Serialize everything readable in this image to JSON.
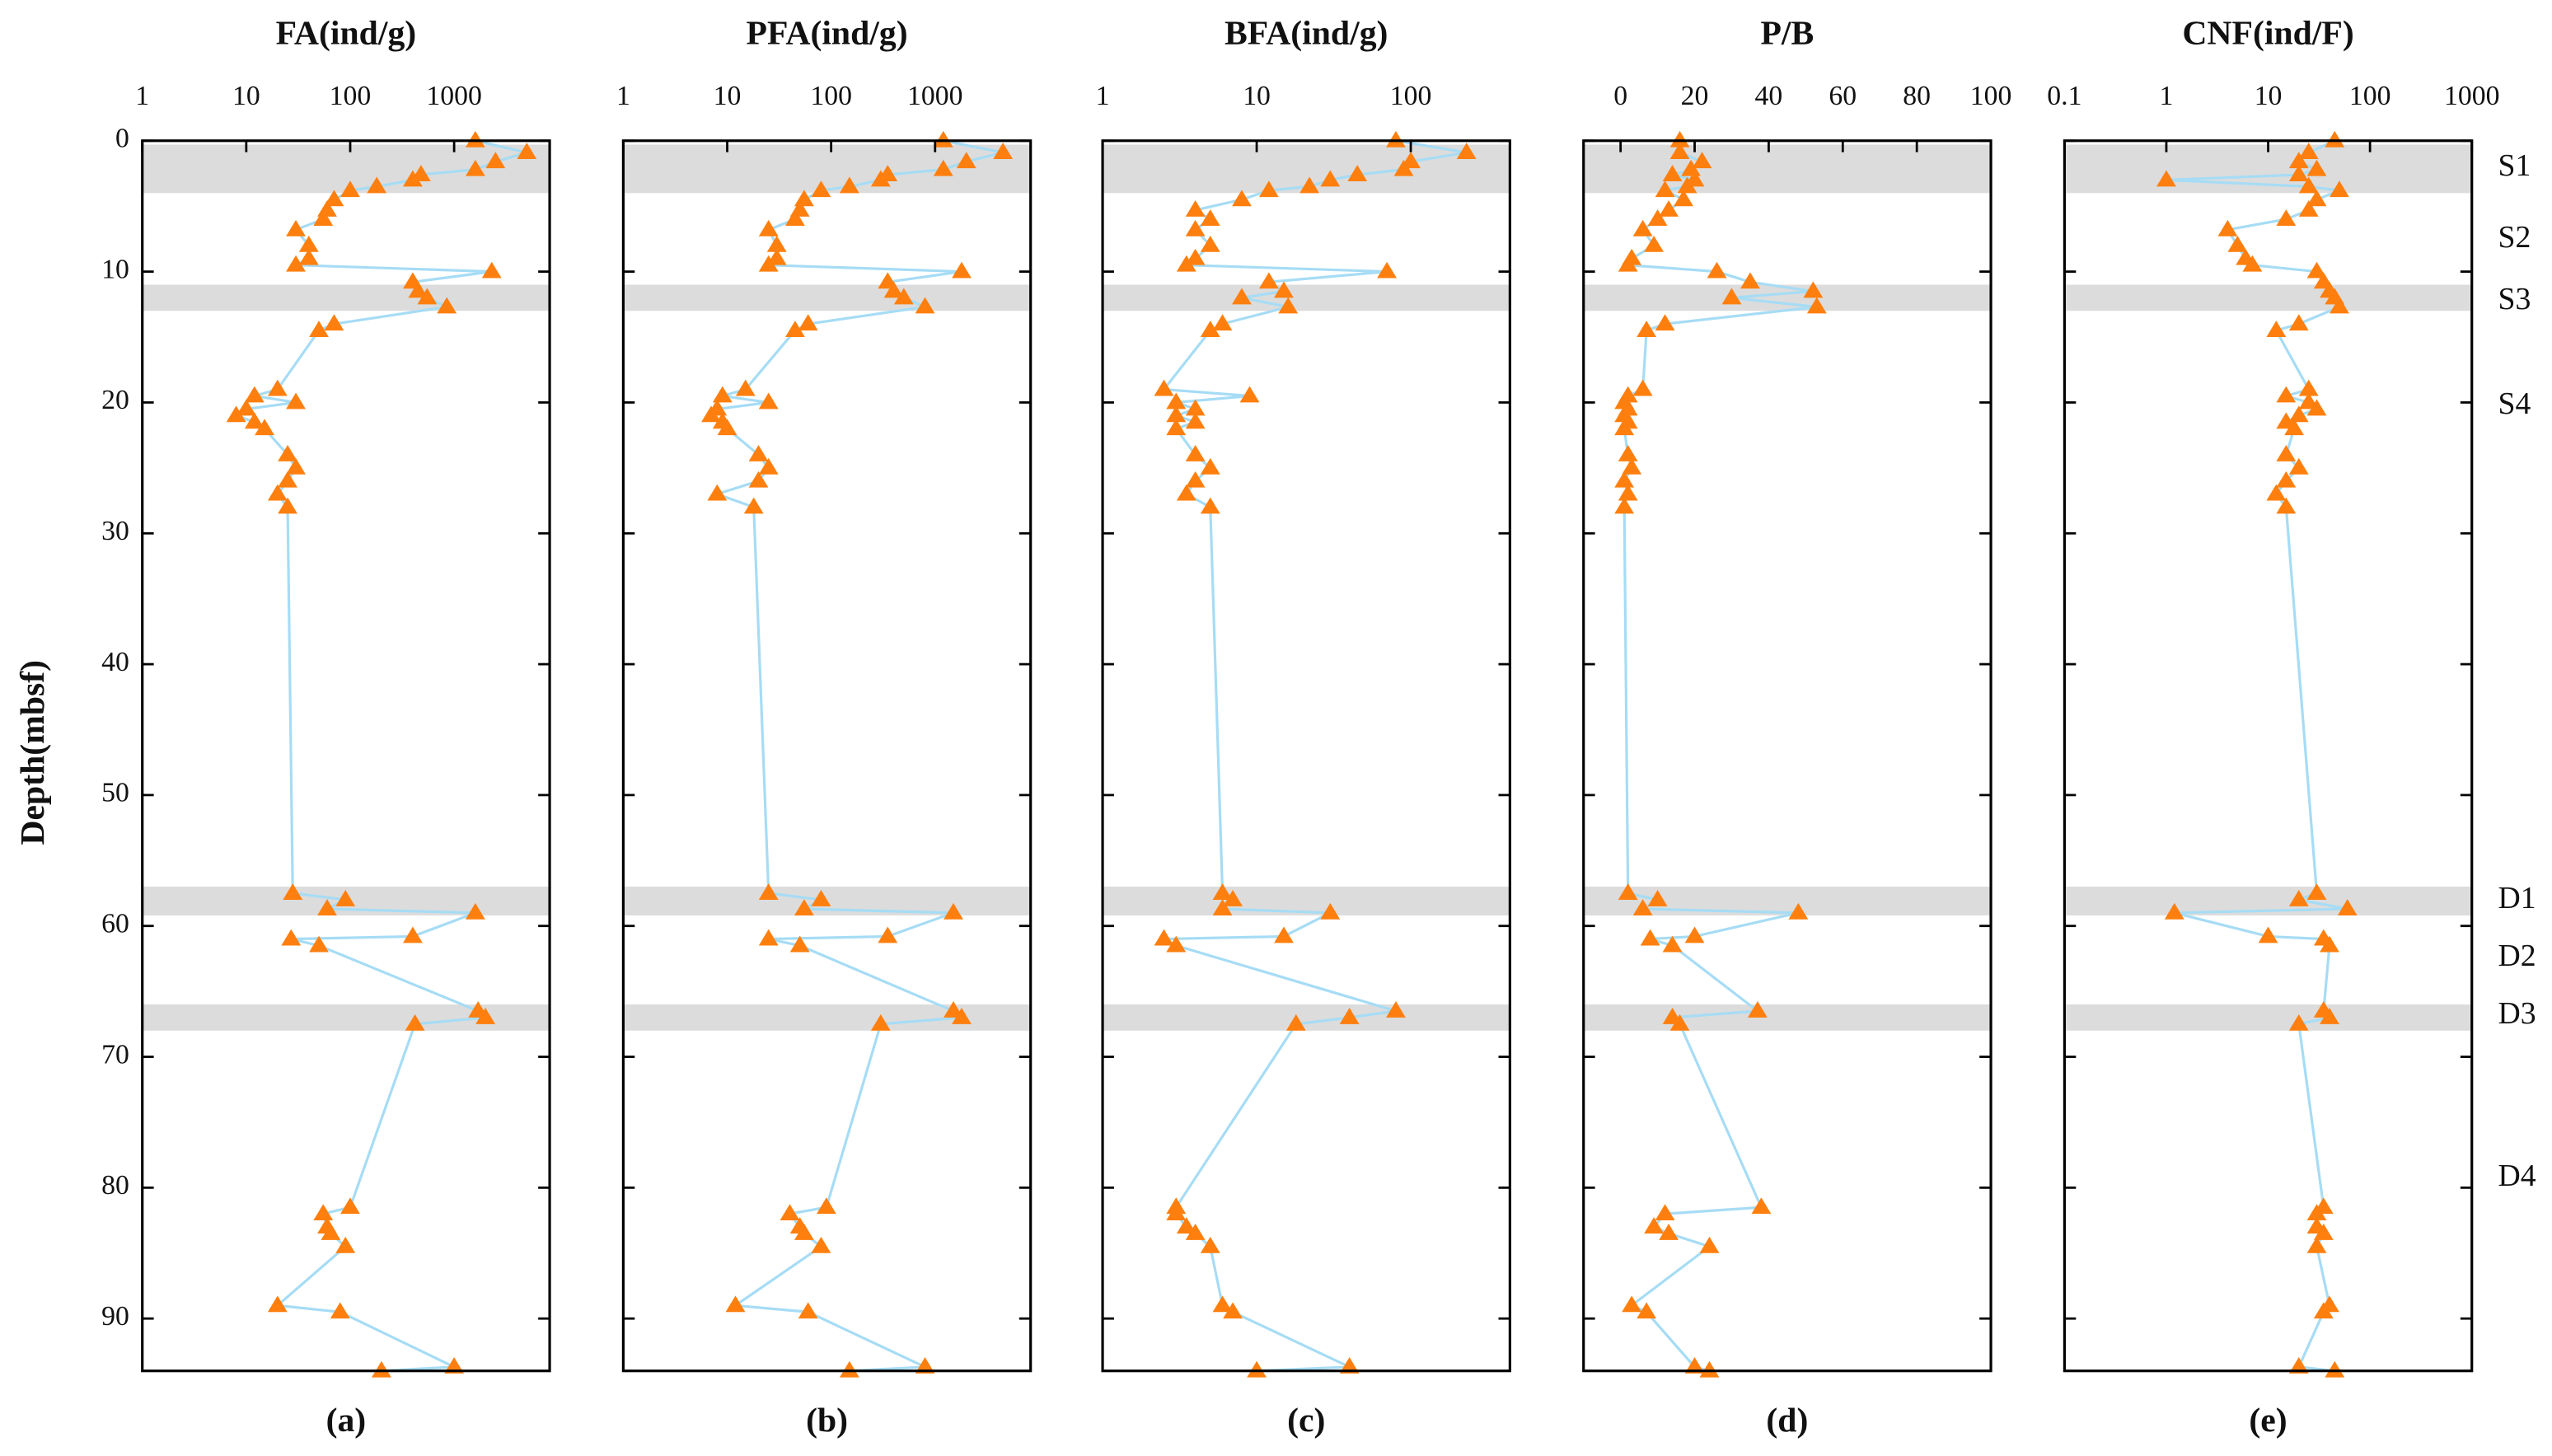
{
  "chart_data": [
    {
      "type": "line",
      "title": "FA(ind/g)",
      "caption": "(a)",
      "xscale": "log",
      "xlim": [
        1,
        8300
      ],
      "xticks": [
        1,
        10,
        100,
        1000
      ],
      "depth": [
        0,
        0.9,
        1.6,
        2.2,
        2.6,
        3.0,
        3.5,
        3.8,
        4.5,
        5.3,
        6.0,
        6.8,
        8.0,
        9.0,
        9.5,
        10.0,
        10.8,
        11.5,
        12.0,
        12.7,
        14.0,
        14.5,
        19.0,
        19.5,
        20.0,
        20.5,
        21.0,
        21.5,
        22.0,
        24.0,
        25.0,
        26.0,
        27.0,
        28.0,
        57.5,
        58.0,
        58.7,
        59.0,
        60.8,
        61.0,
        61.5,
        66.5,
        67.0,
        67.5,
        81.5,
        82.0,
        83.0,
        83.5,
        84.5,
        89.0,
        89.5,
        93.7,
        94.0
      ],
      "values": [
        1600,
        5000,
        2500,
        1600,
        480,
        400,
        180,
        100,
        70,
        60,
        55,
        30,
        40,
        40,
        30,
        2300,
        400,
        450,
        550,
        850,
        70,
        50,
        20,
        12,
        30,
        10,
        8,
        12,
        15,
        25,
        30,
        25,
        20,
        25,
        28,
        90,
        60,
        1600,
        400,
        27,
        50,
        1700,
        2000,
        420,
        100,
        55,
        60,
        65,
        90,
        20,
        80,
        1000,
        200
      ]
    },
    {
      "type": "line",
      "title": "PFA(ind/g)",
      "caption": "(b)",
      "xscale": "log",
      "xlim": [
        1,
        8300
      ],
      "xticks": [
        1,
        10,
        100,
        1000
      ],
      "depth": [
        0,
        0.9,
        1.6,
        2.2,
        2.6,
        3.0,
        3.5,
        3.8,
        4.5,
        5.3,
        6.0,
        6.8,
        8.0,
        9.0,
        9.5,
        10.0,
        10.8,
        11.5,
        12.0,
        12.7,
        14.0,
        14.5,
        19.0,
        19.5,
        20.0,
        20.5,
        21.0,
        21.5,
        22.0,
        24.0,
        25.0,
        26.0,
        27.0,
        28.0,
        57.5,
        58.0,
        58.7,
        59.0,
        60.8,
        61.0,
        61.5,
        66.5,
        67.0,
        67.5,
        81.5,
        82.0,
        83.0,
        83.5,
        84.5,
        89.0,
        89.5,
        93.7,
        94.0
      ],
      "values": [
        1200,
        4500,
        2000,
        1200,
        350,
        300,
        150,
        80,
        55,
        50,
        45,
        25,
        30,
        30,
        25,
        1800,
        350,
        400,
        500,
        800,
        60,
        45,
        15,
        9,
        25,
        8,
        7,
        9,
        10,
        20,
        25,
        20,
        8,
        18,
        25,
        80,
        55,
        1500,
        350,
        25,
        50,
        1500,
        1800,
        300,
        90,
        40,
        50,
        55,
        80,
        12,
        60,
        800,
        150
      ]
    },
    {
      "type": "line",
      "title": "BFA(ind/g)",
      "caption": "(c)",
      "xscale": "log",
      "xlim": [
        1,
        440
      ],
      "xticks": [
        1,
        10,
        100
      ],
      "depth": [
        0,
        0.9,
        1.6,
        2.2,
        2.6,
        3.0,
        3.5,
        3.8,
        4.5,
        5.3,
        6.0,
        6.8,
        8.0,
        9.0,
        9.5,
        10.0,
        10.8,
        11.5,
        12.0,
        12.7,
        14.0,
        14.5,
        19.0,
        19.5,
        20.0,
        20.5,
        21.0,
        21.5,
        22.0,
        24.0,
        25.0,
        26.0,
        27.0,
        28.0,
        57.5,
        58.0,
        58.7,
        59.0,
        60.8,
        61.0,
        61.5,
        66.5,
        67.0,
        67.5,
        81.5,
        82.0,
        83.0,
        83.5,
        84.5,
        89.0,
        89.5,
        93.7,
        94.0
      ],
      "values": [
        80,
        230,
        100,
        90,
        45,
        30,
        22,
        12,
        8,
        4,
        5,
        4,
        5,
        4,
        3.5,
        70,
        12,
        15,
        8,
        16,
        6,
        5,
        2.5,
        9,
        3,
        4,
        3,
        4,
        3,
        4,
        5,
        4,
        3.5,
        5,
        6,
        7,
        6,
        30,
        15,
        2.5,
        3,
        80,
        40,
        18,
        3,
        3,
        3.5,
        4,
        5,
        6,
        7,
        40,
        10
      ]
    },
    {
      "type": "line",
      "title": "P/B",
      "caption": "(d)",
      "xscale": "linear",
      "xlim": [
        -10,
        100
      ],
      "xticks": [
        0,
        20,
        40,
        60,
        80,
        100
      ],
      "depth": [
        0,
        0.9,
        1.6,
        2.2,
        2.6,
        3.0,
        3.5,
        3.8,
        4.5,
        5.3,
        6.0,
        6.8,
        8.0,
        9.0,
        9.5,
        10.0,
        10.8,
        11.5,
        12.0,
        12.7,
        14.0,
        14.5,
        19.0,
        19.5,
        20.0,
        20.5,
        21.0,
        21.5,
        22.0,
        24.0,
        25.0,
        26.0,
        27.0,
        28.0,
        57.5,
        58.0,
        58.7,
        59.0,
        60.8,
        61.0,
        61.5,
        66.5,
        67.0,
        67.5,
        81.5,
        82.0,
        83.0,
        83.5,
        84.5,
        89.0,
        89.5,
        93.7,
        94.0
      ],
      "values": [
        16,
        16,
        22,
        19,
        14,
        20,
        18,
        12,
        17,
        13,
        10,
        6,
        9,
        3,
        2,
        26,
        35,
        52,
        30,
        53,
        12,
        7,
        6,
        2,
        1,
        2,
        1,
        2,
        1,
        2,
        3,
        1,
        2,
        1,
        2,
        10,
        6,
        48,
        20,
        8,
        14,
        37,
        14,
        16,
        38,
        12,
        9,
        13,
        24,
        3,
        7,
        20,
        24
      ]
    },
    {
      "type": "line",
      "title": "CNF(ind/F)",
      "caption": "(e)",
      "xscale": "log",
      "xlim": [
        0.1,
        1000
      ],
      "xticks": [
        0.1,
        1,
        10,
        100,
        1000
      ],
      "depth": [
        0,
        0.9,
        1.6,
        2.2,
        2.6,
        3.0,
        3.5,
        3.8,
        4.5,
        5.3,
        6.0,
        6.8,
        8.0,
        9.0,
        9.5,
        10.0,
        10.8,
        11.5,
        12.0,
        12.7,
        14.0,
        14.5,
        19.0,
        19.5,
        20.0,
        20.5,
        21.0,
        21.5,
        22.0,
        24.0,
        25.0,
        26.0,
        27.0,
        28.0,
        57.5,
        58.0,
        58.7,
        59.0,
        60.8,
        61.0,
        61.5,
        66.5,
        67.0,
        67.5,
        81.5,
        82.0,
        83.0,
        83.5,
        84.5,
        89.0,
        89.5,
        93.7,
        94.0
      ],
      "values": [
        45,
        25,
        20,
        30,
        20,
        1,
        25,
        50,
        30,
        25,
        15,
        4,
        5,
        6,
        7,
        30,
        35,
        40,
        45,
        50,
        20,
        12,
        25,
        15,
        25,
        30,
        20,
        15,
        18,
        15,
        20,
        15,
        12,
        15,
        30,
        20,
        60,
        1.2,
        10,
        35,
        40,
        35,
        40,
        20,
        35,
        30,
        30,
        35,
        30,
        40,
        35,
        20,
        45
      ]
    }
  ],
  "depth_axis": {
    "label": "Depth(mbsf)",
    "ylim": [
      0,
      94
    ],
    "yticks": [
      0,
      10,
      20,
      30,
      40,
      50,
      60,
      70,
      80,
      90
    ]
  },
  "zones": [
    [
      0.3,
      4
    ],
    [
      11,
      13
    ],
    [
      57,
      59.2
    ],
    [
      66,
      68
    ]
  ],
  "zone_labels": [
    {
      "label": "S1",
      "depth": 2.1
    },
    {
      "label": "S2",
      "depth": 7.6
    },
    {
      "label": "S3",
      "depth": 12.3
    },
    {
      "label": "S4",
      "depth": 20.3
    },
    {
      "label": "D1",
      "depth": 58.1
    },
    {
      "label": "D2",
      "depth": 62.5
    },
    {
      "label": "D3",
      "depth": 66.9
    },
    {
      "label": "D4",
      "depth": 79.3
    }
  ],
  "colors": {
    "line": "#a6dcf5",
    "marker": "#ff7f0e",
    "zone": "#dcdcdc"
  }
}
